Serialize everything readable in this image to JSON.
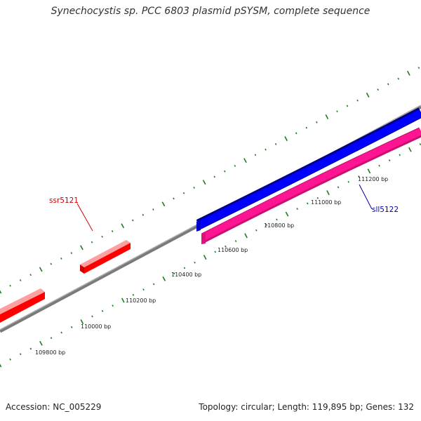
{
  "title": "Synechocystis sp. PCC 6803 plasmid pSYSM, complete sequence",
  "footer": {
    "accession": "Accession: NC_005229",
    "summary": "Topology: circular; Length: 119,895 bp; Genes: 132"
  },
  "gene_labels": {
    "ssr5121": "ssr5121",
    "sll5122": "sll5122"
  },
  "scale_labels": [
    "109800 bp",
    "110000 bp",
    "110200 bp",
    "110400 bp",
    "110600 bp",
    "110800 bp",
    "111000 bp",
    "111200 bp"
  ],
  "colors": {
    "backbone": "#777777",
    "forward_gene": "#ff0000",
    "reverse_gene": "#0000ff",
    "reverse_gene_2": "#ff1493",
    "ticks": "#1a7f1a",
    "label_forward": "#cc0000",
    "label_reverse": "#0000aa"
  }
}
